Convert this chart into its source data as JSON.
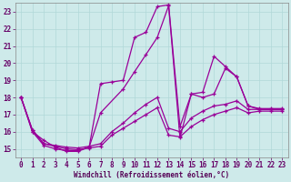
{
  "xlabel": "Windchill (Refroidissement éolien,°C)",
  "background_color": "#ceeaea",
  "line_color": "#990099",
  "grid_color": "#b0d8d8",
  "xlim": [
    -0.5,
    23.5
  ],
  "ylim": [
    14.5,
    23.5
  ],
  "yticks": [
    15,
    16,
    17,
    18,
    19,
    20,
    21,
    22,
    23
  ],
  "xticks": [
    0,
    1,
    2,
    3,
    4,
    5,
    6,
    7,
    8,
    9,
    10,
    11,
    12,
    13,
    14,
    15,
    16,
    17,
    18,
    19,
    20,
    21,
    22,
    23
  ],
  "series": [
    {
      "x": [
        0,
        1,
        2,
        3,
        4,
        5,
        6,
        7,
        8,
        9,
        10,
        11,
        12,
        13,
        14,
        15,
        16,
        17,
        18,
        19,
        20,
        21,
        22,
        23
      ],
      "y": [
        18,
        16,
        15.5,
        15.1,
        14.85,
        14.85,
        15.1,
        18.8,
        18.9,
        19.0,
        21.5,
        21.8,
        23.3,
        23.4,
        16.3,
        18.2,
        18.0,
        18.2,
        19.7,
        19.2,
        17.5,
        17.3,
        17.3,
        17.3
      ]
    },
    {
      "x": [
        0,
        1,
        2,
        3,
        4,
        5,
        6,
        7,
        8,
        9,
        10,
        11,
        12,
        13,
        14,
        15,
        16,
        17,
        18,
        19,
        20,
        21,
        22,
        23
      ],
      "y": [
        18,
        16.1,
        15.3,
        15.15,
        15.0,
        14.95,
        15.05,
        15.15,
        15.8,
        16.2,
        16.6,
        17.0,
        17.4,
        15.8,
        15.7,
        16.3,
        16.7,
        17.0,
        17.2,
        17.4,
        17.1,
        17.2,
        17.2,
        17.2
      ]
    },
    {
      "x": [
        0,
        1,
        2,
        3,
        4,
        5,
        6,
        7,
        8,
        9,
        10,
        11,
        12,
        13,
        14,
        15,
        16,
        17,
        18,
        19,
        20,
        21,
        22,
        23
      ],
      "y": [
        18,
        16.1,
        15.3,
        15.2,
        15.1,
        15.05,
        15.15,
        15.3,
        16.0,
        16.5,
        17.1,
        17.6,
        18.0,
        16.2,
        16.0,
        16.8,
        17.2,
        17.5,
        17.6,
        17.8,
        17.3,
        17.3,
        17.3,
        17.3
      ]
    },
    {
      "x": [
        0,
        1,
        2,
        3,
        4,
        5,
        6,
        7,
        9,
        10,
        11,
        12,
        13,
        14,
        15,
        16,
        17,
        18,
        19,
        20,
        21,
        22,
        23
      ],
      "y": [
        18,
        16.0,
        15.2,
        15.0,
        14.9,
        14.9,
        15.1,
        17.1,
        18.5,
        19.5,
        20.5,
        21.5,
        23.35,
        15.65,
        18.2,
        18.3,
        20.4,
        19.8,
        19.2,
        17.5,
        17.35,
        17.35,
        17.35
      ]
    }
  ],
  "tick_fontsize": 5.5,
  "xlabel_fontsize": 5.5,
  "linewidth": 0.9,
  "marker": "+",
  "markersize": 3.5,
  "markeredgewidth": 0.9
}
